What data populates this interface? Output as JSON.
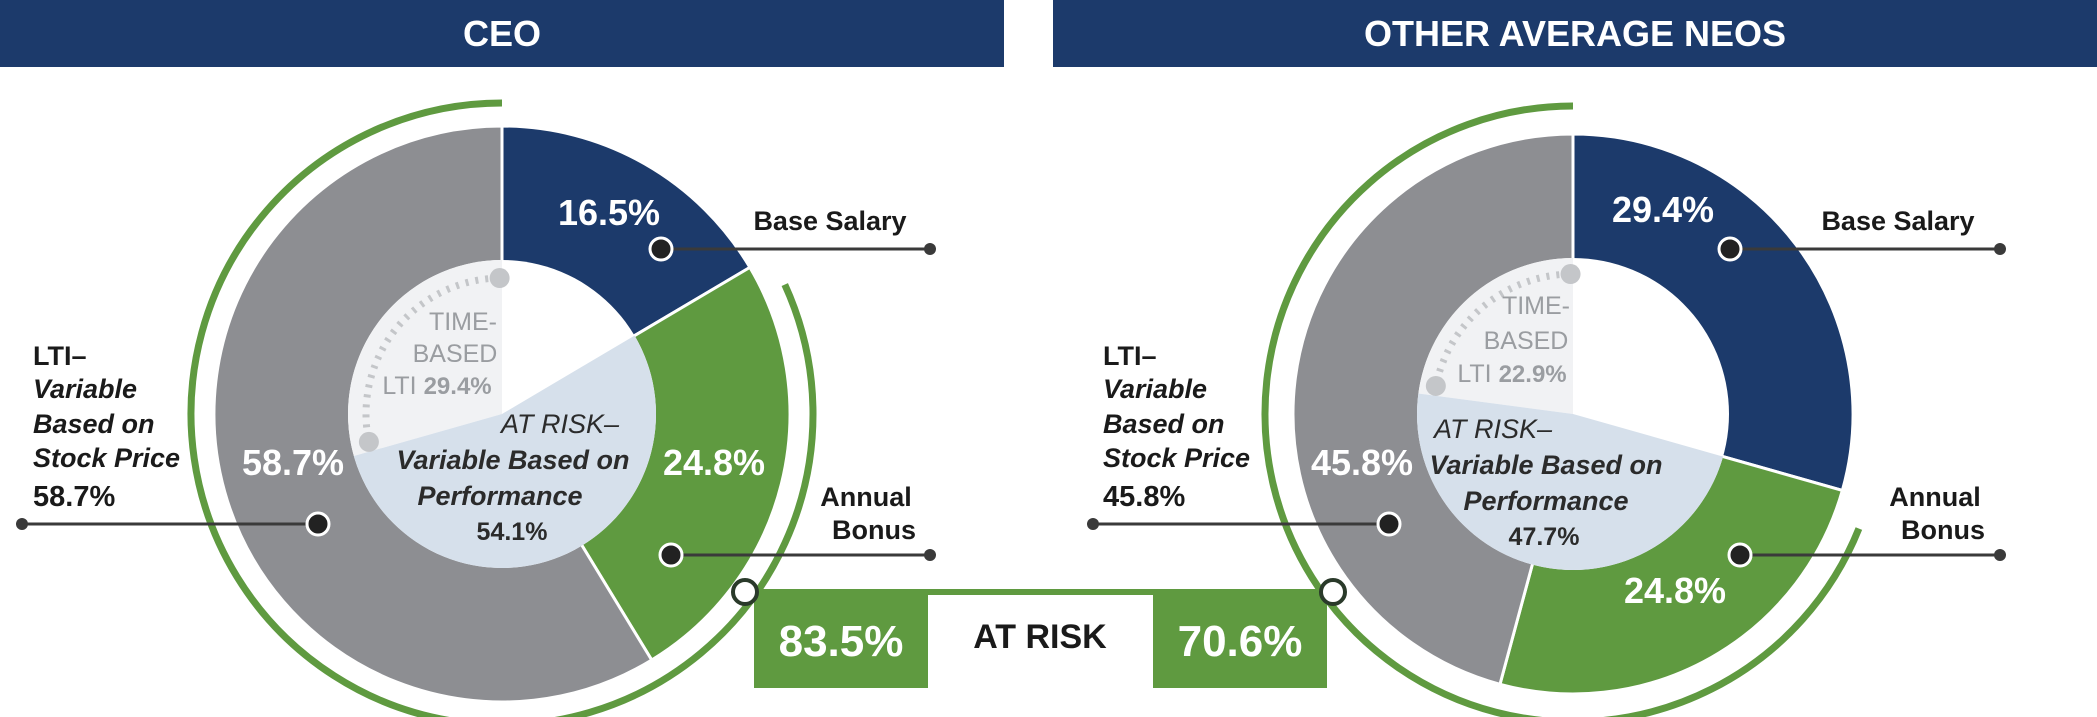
{
  "colors": {
    "navy": "#1c3a6b",
    "green": "#5f9a40",
    "gray": "#8d8e92",
    "light_blue": "#d6e0eb",
    "light_gray": "#f1f2f4",
    "dot_gray": "#c4c6c9"
  },
  "chart_data": [
    {
      "type": "pie",
      "title": "CEO",
      "segments": [
        {
          "name": "Base Salary",
          "value": 16.5,
          "label": "16.5%"
        },
        {
          "name": "Annual Bonus",
          "value": 24.8,
          "label": "24.8%"
        },
        {
          "name": "LTI–Variable Based on Stock Price",
          "value": 58.7,
          "label": "58.7%"
        }
      ],
      "inner": {
        "time_based": {
          "line1": "TIME-",
          "line2": "BASED",
          "prefix": "LTI ",
          "value_text": "29.4%",
          "value": 29.4
        },
        "at_risk_performance": {
          "line1": "AT RISK–",
          "line2": "Variable Based on",
          "line3": "Performance",
          "value_text": "54.1%",
          "value": 54.1
        }
      },
      "callouts": {
        "base_salary": "Base Salary",
        "bonus_line1": "Annual",
        "bonus_line2": "Bonus",
        "lti_line1": "LTI–",
        "lti_line2": "Variable",
        "lti_line3": "Based on",
        "lti_line4": "Stock Price",
        "lti_value": "58.7%"
      },
      "at_risk_total": {
        "value": 83.5,
        "label": "83.5%"
      }
    },
    {
      "type": "pie",
      "title": "OTHER AVERAGE NEOS",
      "segments": [
        {
          "name": "Base Salary",
          "value": 29.4,
          "label": "29.4%"
        },
        {
          "name": "Annual Bonus",
          "value": 24.8,
          "label": "24.8%"
        },
        {
          "name": "LTI–Variable Based on Stock Price",
          "value": 45.8,
          "label": "45.8%"
        }
      ],
      "inner": {
        "time_based": {
          "line1": "TIME-",
          "line2": "BASED",
          "prefix": "LTI ",
          "value_text": "22.9%",
          "value": 22.9
        },
        "at_risk_performance": {
          "line1": "AT RISK–",
          "line2": "Variable Based on",
          "line3": "Performance",
          "value_text": "47.7%",
          "value": 47.7
        }
      },
      "callouts": {
        "base_salary": "Base Salary",
        "bonus_line1": "Annual",
        "bonus_line2": "Bonus",
        "lti_line1": "LTI–",
        "lti_line2": "Variable",
        "lti_line3": "Based on",
        "lti_line4": "Stock Price",
        "lti_value": "45.8%"
      },
      "at_risk_total": {
        "value": 70.6,
        "label": "70.6%"
      }
    }
  ],
  "at_risk_label": "AT RISK"
}
